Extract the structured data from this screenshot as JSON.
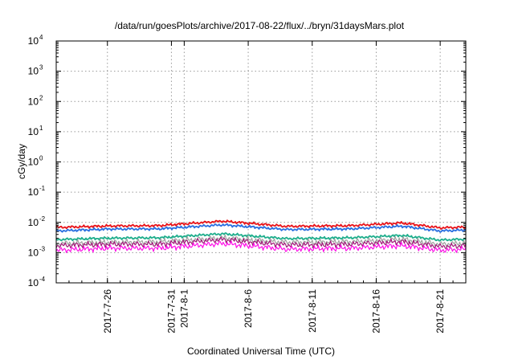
{
  "chart_data": {
    "type": "line",
    "title": "/data/run/goesPlots/archive/2017-08-22/flux/../bryn/31daysMars.plot",
    "xlabel": "Coordinated Universal Time (UTC)",
    "ylabel": "cGy/day",
    "yscale": "log",
    "ylim": [
      0.0001,
      10000
    ],
    "y_ticks": [
      {
        "base": "10",
        "exp": "-4"
      },
      {
        "base": "10",
        "exp": "-3"
      },
      {
        "base": "10",
        "exp": "-2"
      },
      {
        "base": "10",
        "exp": "-1"
      },
      {
        "base": "10",
        "exp": "0"
      },
      {
        "base": "10",
        "exp": "1"
      },
      {
        "base": "10",
        "exp": "2"
      },
      {
        "base": "10",
        "exp": "3"
      },
      {
        "base": "10",
        "exp": "4"
      }
    ],
    "xlim": [
      "2017-07-22",
      "2017-08-23"
    ],
    "x_ticks": [
      "2017-7-26",
      "2017-7-31",
      "2017-8-1",
      "2017-8-6",
      "2017-8-11",
      "2017-8-16",
      "2017-8-21"
    ],
    "grid": true,
    "series": [
      {
        "color": "#e8141a",
        "x": [
          "2017-07-22",
          "2017-07-26",
          "2017-07-30",
          "2017-08-04",
          "2017-08-09",
          "2017-08-14",
          "2017-08-18",
          "2017-08-21",
          "2017-08-23"
        ],
        "values": [
          0.0068,
          0.0076,
          0.0078,
          0.011,
          0.0074,
          0.0078,
          0.0096,
          0.0066,
          0.007
        ]
      },
      {
        "color": "#2a6fe0",
        "x": [
          "2017-07-22",
          "2017-07-26",
          "2017-07-30",
          "2017-08-04",
          "2017-08-09",
          "2017-08-14",
          "2017-08-18",
          "2017-08-21",
          "2017-08-23"
        ],
        "values": [
          0.0052,
          0.006,
          0.0061,
          0.0083,
          0.0058,
          0.0061,
          0.0075,
          0.0052,
          0.0056
        ]
      },
      {
        "color": "#1fae8c",
        "x": [
          "2017-07-22",
          "2017-07-26",
          "2017-07-30",
          "2017-08-04",
          "2017-08-09",
          "2017-08-14",
          "2017-08-18",
          "2017-08-21",
          "2017-08-23"
        ],
        "values": [
          0.0027,
          0.003,
          0.0031,
          0.0042,
          0.0029,
          0.0031,
          0.0037,
          0.0026,
          0.0028
        ]
      },
      {
        "color": "#a0a0a0",
        "x": [
          "2017-07-22",
          "2017-07-26",
          "2017-07-30",
          "2017-08-04",
          "2017-08-09",
          "2017-08-14",
          "2017-08-18",
          "2017-08-21",
          "2017-08-23"
        ],
        "values": [
          0.002,
          0.0022,
          0.0023,
          0.0031,
          0.0022,
          0.0023,
          0.0028,
          0.0019,
          0.0021
        ]
      },
      {
        "color": "#a01878",
        "x": [
          "2017-07-22",
          "2017-07-26",
          "2017-07-30",
          "2017-08-04",
          "2017-08-09",
          "2017-08-14",
          "2017-08-18",
          "2017-08-21",
          "2017-08-23"
        ],
        "values": [
          0.0017,
          0.0019,
          0.0019,
          0.0027,
          0.0018,
          0.0019,
          0.0023,
          0.0016,
          0.0017
        ]
      },
      {
        "color": "#ff10e8",
        "x": [
          "2017-07-22",
          "2017-07-26",
          "2017-07-30",
          "2017-08-04",
          "2017-08-09",
          "2017-08-14",
          "2017-08-18",
          "2017-08-21",
          "2017-08-23"
        ],
        "values": [
          0.0012,
          0.0014,
          0.0014,
          0.002,
          0.0013,
          0.0014,
          0.0017,
          0.0012,
          0.0013
        ]
      }
    ]
  }
}
